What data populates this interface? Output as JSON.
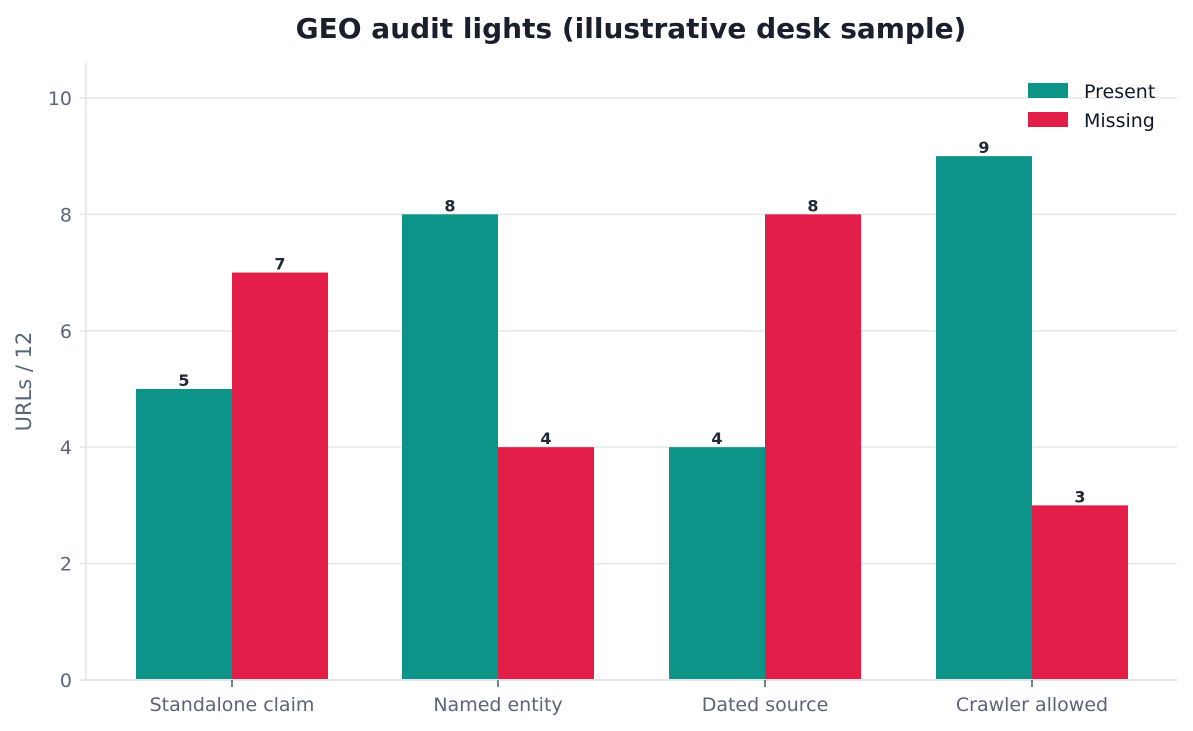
{
  "chart_data": {
    "type": "bar",
    "title": "GEO audit lights (illustrative desk sample)",
    "xlabel": "",
    "ylabel": "URLs / 12",
    "categories": [
      "Standalone claim",
      "Named entity",
      "Dated source",
      "Crawler allowed"
    ],
    "series": [
      {
        "name": "Present",
        "values": [
          5,
          8,
          4,
          9
        ],
        "color": "#0d9488"
      },
      {
        "name": "Missing",
        "values": [
          7,
          4,
          8,
          3
        ],
        "color": "#e11d48"
      }
    ],
    "ylim": [
      0,
      10.6
    ],
    "yticks": [
      0,
      2,
      4,
      6,
      8,
      10
    ],
    "grid": true,
    "legend": "top-right",
    "data_labels": true
  },
  "colors": {
    "title": "#1a1f2e",
    "tick_text": "#5b6478",
    "axis_line": "#e2e5ea",
    "grid": "#e5e7eb",
    "data_label": "#1f2937"
  }
}
